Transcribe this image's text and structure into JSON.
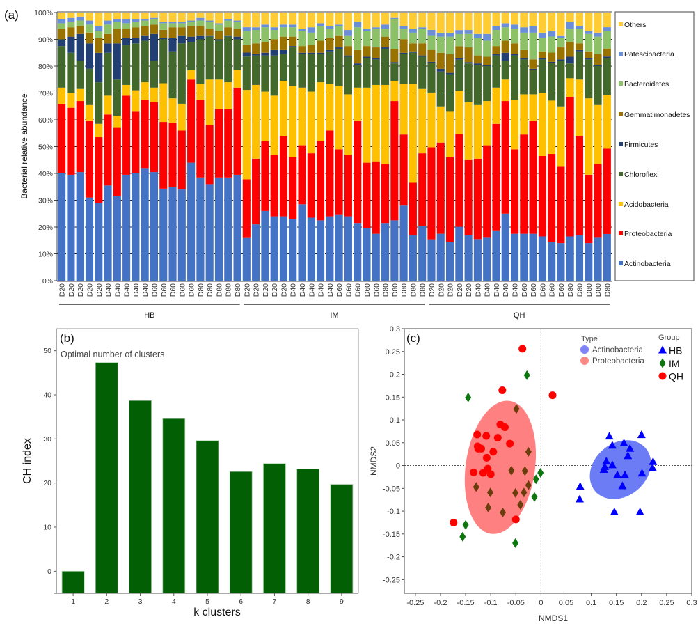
{
  "chart_data": [
    {
      "panel": "(a)",
      "type": "bar",
      "stacked": true,
      "ylabel": "Bacterial relative abundance",
      "ylim": [
        0,
        100
      ],
      "yticks": [
        "0%",
        "10%",
        "20%",
        "30%",
        "40%",
        "50%",
        "60%",
        "70%",
        "80%",
        "90%",
        "100%"
      ],
      "grid": true,
      "legend_placement": "right",
      "groups": [
        {
          "name": "HB",
          "samples": [
            "D20",
            "D20",
            "D20",
            "D20",
            "D20",
            "D40",
            "D40",
            "D40",
            "D40",
            "D40",
            "D60",
            "D60",
            "D60",
            "D60",
            "D60",
            "D80",
            "D80",
            "D80",
            "D80",
            "D80"
          ]
        },
        {
          "name": "IM",
          "samples": [
            "D20",
            "D20",
            "D20",
            "D20",
            "D20",
            "D40",
            "D40",
            "D40",
            "D40",
            "D40",
            "D60",
            "D60",
            "D60",
            "D60",
            "D60",
            "D80",
            "D80",
            "D80",
            "D80",
            "D80"
          ]
        },
        {
          "name": "QH",
          "samples": [
            "D20",
            "D20",
            "D20",
            "D20",
            "D20",
            "D40",
            "D40",
            "D40",
            "D40",
            "D40",
            "D60",
            "D60",
            "D60",
            "D60",
            "D60",
            "D80",
            "D80",
            "D80",
            "D80",
            "D80"
          ]
        }
      ],
      "series": [
        {
          "name": "Actinobacteria",
          "color": "#4472C4",
          "values": [
            40,
            39.5,
            40.5,
            31,
            29,
            35.5,
            31.5,
            39.5,
            40,
            42,
            40.5,
            34.5,
            35,
            34,
            44,
            38.5,
            36,
            38.5,
            38.5,
            39.5,
            16,
            21,
            26,
            24,
            24,
            23,
            28.5,
            23.5,
            22.5,
            24,
            24.5,
            24,
            21.5,
            19.5,
            17.5,
            21.5,
            22.5,
            28,
            17,
            20.5,
            15.5,
            17.5,
            14.5,
            20,
            17,
            15.5,
            16,
            18.5,
            25,
            17.5,
            17.5,
            17.5,
            16.5,
            14.5,
            14,
            16.5,
            17,
            14,
            16,
            17.5
          ]
        },
        {
          "name": "Proteobacteria",
          "color": "#FF0000",
          "values": [
            26,
            25,
            26.5,
            28.5,
            24.5,
            26.5,
            25.5,
            29.5,
            23,
            25.5,
            26,
            25,
            24,
            22,
            31,
            29,
            22,
            25.5,
            25.5,
            32.5,
            22,
            24.5,
            26,
            23,
            30,
            23,
            22,
            24,
            29.5,
            32,
            24.5,
            23,
            38,
            24.5,
            27,
            22,
            44.5,
            26.5,
            19.5,
            27,
            34.5,
            34,
            31.5,
            34.5,
            28,
            30,
            34.5,
            40,
            42,
            31.5,
            37,
            42,
            30,
            33,
            28.5,
            52,
            37,
            25.5,
            27.5,
            32
          ]
        },
        {
          "name": "Acidobacteria",
          "color": "#FFC000",
          "values": [
            6,
            5.5,
            4.5,
            6,
            5,
            7,
            4.5,
            4,
            8,
            6.5,
            5.5,
            14.5,
            9,
            10,
            3.5,
            6,
            17,
            11,
            10,
            6.5,
            33.5,
            27.5,
            18.5,
            22,
            20.5,
            26.5,
            21.5,
            23,
            22,
            17.5,
            23.5,
            22.5,
            12.5,
            28,
            28.5,
            29.5,
            7.5,
            19,
            37,
            24,
            20.5,
            13.5,
            17,
            16,
            21.5,
            20,
            16.5,
            13.5,
            8,
            18.5,
            15,
            10,
            23.5,
            20,
            22.5,
            7,
            21,
            28.5,
            22,
            20
          ]
        },
        {
          "name": "Chloroflexi",
          "color": "#43682B",
          "values": [
            15.5,
            15,
            10.5,
            13.5,
            15.5,
            16,
            13.5,
            15,
            17.5,
            15.5,
            10,
            16.5,
            17.5,
            22.5,
            10.5,
            16.5,
            16,
            14.5,
            17,
            11.5,
            12.5,
            11,
            13.5,
            15,
            10,
            14.5,
            12.5,
            14,
            10.5,
            12,
            14,
            14,
            8.5,
            11,
            9.5,
            13.5,
            6.5,
            11,
            11.5,
            12,
            11,
            13,
            14,
            11.5,
            14.5,
            15,
            13,
            12,
            7,
            16.5,
            13,
            9,
            12.5,
            14,
            17,
            5.5,
            10.5,
            14.5,
            14.5,
            14
          ]
        },
        {
          "name": "Firmicutes",
          "color": "#223F73",
          "values": [
            2.5,
            6,
            10,
            9.5,
            11,
            3.5,
            13.5,
            2.5,
            2,
            2,
            10,
            0.5,
            5,
            3,
            2,
            1.5,
            0.5,
            0.5,
            0.5,
            1,
            1.5,
            0.5,
            1,
            2,
            1.5,
            0.5,
            0.5,
            0.5,
            0.5,
            0.5,
            0.5,
            0.5,
            0.5,
            0.5,
            0.5,
            0.5,
            0.5,
            0.5,
            0.5,
            0.5,
            0.5,
            1,
            0.5,
            0.5,
            0.5,
            0.5,
            0.5,
            0.5,
            3,
            0.5,
            0.5,
            0.5,
            0.5,
            0.5,
            0.5,
            2.5,
            0.5,
            0.5,
            0.5,
            0.5
          ]
        },
        {
          "name": "Gemmatimonadetes",
          "color": "#9A7200",
          "values": [
            4,
            3.5,
            3,
            4,
            5.5,
            3.5,
            5.5,
            3.5,
            4,
            3.5,
            3.5,
            3,
            4,
            3,
            4,
            3.5,
            2.5,
            3,
            3,
            3,
            3,
            4,
            4,
            4,
            5,
            3.5,
            2.5,
            3,
            4.5,
            4.5,
            4.5,
            3.5,
            5,
            4,
            4,
            4,
            5,
            5,
            3,
            4.5,
            4.5,
            6,
            7,
            4.5,
            5.5,
            3,
            3,
            3,
            4.5,
            4,
            3,
            3.5,
            2.5,
            3.5,
            4.5,
            5.5,
            2.5,
            2.5,
            4,
            3
          ]
        },
        {
          "name": "Bacteroidetes",
          "color": "#8CC168",
          "values": [
            2,
            2,
            2,
            3,
            2.5,
            3.5,
            2.5,
            2,
            2,
            2,
            2,
            2.5,
            1.5,
            1.5,
            1.5,
            2,
            2.5,
            2.5,
            2.5,
            2.5,
            5,
            5,
            5.5,
            3.5,
            3.5,
            3.5,
            5.5,
            4.5,
            5.5,
            3.5,
            3.5,
            4,
            8.5,
            5.5,
            7,
            3,
            11,
            4,
            4,
            5.5,
            5.5,
            6,
            6.5,
            4.5,
            5,
            6.5,
            6,
            6,
            5,
            5.5,
            6.5,
            10,
            5,
            6,
            3.5,
            5,
            5.5,
            6.5,
            6.5,
            6.5
          ]
        },
        {
          "name": "Patescibacteria",
          "color": "#6A8FD8",
          "values": [
            1.5,
            1.5,
            1.5,
            1.5,
            2,
            1.5,
            1,
            1.5,
            1,
            0.5,
            0.5,
            0.5,
            0.5,
            0.5,
            0.5,
            1,
            0.5,
            0.5,
            0.5,
            0.5,
            1.5,
            1,
            1,
            1,
            1,
            1,
            1,
            2,
            1,
            1,
            0.5,
            2,
            2,
            1,
            0.5,
            1.5,
            0.5,
            1,
            1.5,
            0.5,
            2,
            1.5,
            1.5,
            1.5,
            1.5,
            1.5,
            2.5,
            1.5,
            1.5,
            1.5,
            2,
            2.5,
            2,
            2,
            1,
            2.5,
            1,
            1,
            1.5,
            1.5
          ]
        },
        {
          "name": "Others",
          "color": "#FFCD33",
          "values": [
            2.5,
            2,
            1.5,
            3,
            5,
            3,
            2.5,
            2.5,
            2.5,
            2.5,
            2,
            3.5,
            3.5,
            3.5,
            3,
            2,
            3,
            4,
            2.5,
            3,
            5.5,
            5.5,
            4.5,
            5.5,
            4.5,
            4.5,
            6,
            5.5,
            4,
            5,
            4.5,
            6.5,
            3.5,
            6,
            5.5,
            4.5,
            2,
            5,
            6,
            5.5,
            6.5,
            7.5,
            7.5,
            6.5,
            6.5,
            8,
            8,
            5,
            4,
            4.5,
            5.5,
            5,
            7.5,
            7,
            8.5,
            3.5,
            5,
            7,
            7.5,
            5.5
          ]
        }
      ]
    },
    {
      "panel": "(b)",
      "type": "bar",
      "title": "Optimal number of clusters",
      "xlabel": "k clusters",
      "ylabel": "CH index",
      "categories": [
        "1",
        "2",
        "3",
        "4",
        "5",
        "6",
        "7",
        "8",
        "9"
      ],
      "values": [
        0,
        47.3,
        38.7,
        34.6,
        29.6,
        22.6,
        24.4,
        23.2,
        19.7
      ],
      "ylim": [
        -5,
        55
      ],
      "yticks": [
        0,
        10,
        20,
        30,
        40,
        50
      ],
      "color": "#035F03"
    },
    {
      "panel": "(c)",
      "type": "scatter",
      "xlabel": "NMDS1",
      "ylabel": "NMDS2",
      "xlim": [
        -0.272,
        0.3
      ],
      "ylim": [
        -0.28,
        0.3
      ],
      "xticks": [
        -0.25,
        -0.2,
        -0.15,
        -0.1,
        -0.05,
        0,
        0.05,
        0.1,
        0.15,
        0.2,
        0.25,
        0.3
      ],
      "yticks": [
        -0.25,
        -0.2,
        -0.15,
        -0.1,
        -0.05,
        0,
        0.05,
        0.1,
        0.15,
        0.2,
        0.25,
        0.3
      ],
      "reference_lines": {
        "x": 0,
        "y": 0
      },
      "legend_type_title": "Type",
      "legend_group_title": "Group",
      "types": [
        {
          "name": "Actinobacteria",
          "color": "#6B7CF5",
          "center": [
            0.158,
            -0.009
          ],
          "semi_axes": [
            0.066,
            0.058
          ],
          "rotation_deg": -40
        },
        {
          "name": "Proteobacteria",
          "color": "#FF8080",
          "center": [
            -0.081,
            -0.004
          ],
          "semi_axes": [
            0.069,
            0.147
          ],
          "rotation_deg": 8
        }
      ],
      "series": [
        {
          "name": "HB",
          "marker": "triangle",
          "color": "#0000FF",
          "points": [
            [
              0.136,
              0.064
            ],
            [
              0.2,
              0.067
            ],
            [
              0.165,
              0.049
            ],
            [
              0.142,
              0.044
            ],
            [
              0.177,
              0.037
            ],
            [
              0.173,
              0.021
            ],
            [
              0.13,
              0.009
            ],
            [
              0.223,
              0.008
            ],
            [
              0.142,
              0.001
            ],
            [
              0.125,
              -0.009
            ],
            [
              0.127,
              -0.003
            ],
            [
              0.222,
              -0.005
            ],
            [
              0.201,
              -0.017
            ],
            [
              0.152,
              -0.021
            ],
            [
              0.167,
              -0.021
            ],
            [
              0.078,
              -0.046
            ],
            [
              0.162,
              -0.045
            ],
            [
              0.077,
              -0.074
            ],
            [
              0.146,
              -0.102
            ],
            [
              0.197,
              -0.102
            ]
          ]
        },
        {
          "name": "IM",
          "marker": "diamond",
          "color": "#0E760E",
          "points": [
            [
              -0.028,
              0.198
            ],
            [
              -0.145,
              0.149
            ],
            [
              -0.049,
              0.124
            ],
            [
              -0.025,
              0.03
            ],
            [
              -0.059,
              -0.011
            ],
            [
              -0.032,
              -0.012
            ],
            [
              -0.001,
              -0.016
            ],
            [
              -0.01,
              -0.03
            ],
            [
              -0.025,
              -0.043
            ],
            [
              -0.129,
              -0.047
            ],
            [
              -0.101,
              -0.059
            ],
            [
              -0.051,
              -0.06
            ],
            [
              -0.034,
              -0.059
            ],
            [
              -0.013,
              -0.069
            ],
            [
              -0.041,
              -0.086
            ],
            [
              -0.105,
              -0.092
            ],
            [
              -0.076,
              -0.103
            ],
            [
              -0.15,
              -0.13
            ],
            [
              -0.156,
              -0.156
            ],
            [
              -0.051,
              -0.17
            ]
          ]
        },
        {
          "name": "QH",
          "marker": "circle",
          "color": "#FF0000",
          "points": [
            [
              -0.037,
              0.256
            ],
            [
              -0.077,
              0.165
            ],
            [
              0.023,
              0.154
            ],
            [
              -0.081,
              0.09
            ],
            [
              -0.072,
              0.084
            ],
            [
              -0.127,
              0.068
            ],
            [
              -0.109,
              0.065
            ],
            [
              -0.086,
              0.061
            ],
            [
              -0.062,
              0.048
            ],
            [
              -0.126,
              0.042
            ],
            [
              -0.125,
              0.037
            ],
            [
              -0.119,
              0.037
            ],
            [
              -0.095,
              0.03
            ],
            [
              -0.108,
              0.017
            ],
            [
              -0.106,
              -0.007
            ],
            [
              -0.134,
              -0.015
            ],
            [
              -0.115,
              -0.016
            ],
            [
              -0.1,
              -0.019
            ],
            [
              -0.05,
              -0.118
            ],
            [
              -0.174,
              -0.125
            ]
          ]
        }
      ]
    }
  ]
}
